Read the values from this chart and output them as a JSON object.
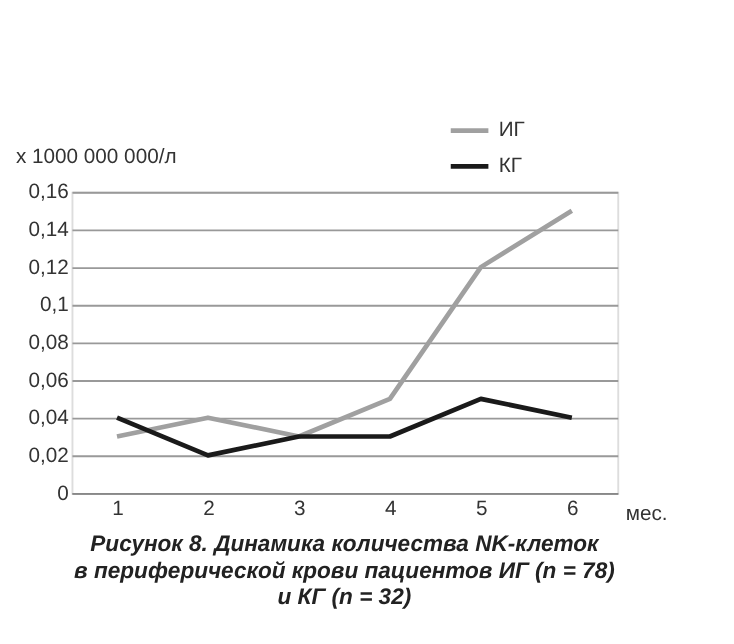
{
  "chart_data": {
    "type": "line",
    "title": "Рисунок 8. Динамика количества NK-клеток\nв периферической крови пациентов ИГ (n = 78)\nи КГ (n = 32)",
    "xlabel": "мес.",
    "ylabel": "x 1000 000 000/л",
    "categories": [
      "1",
      "2",
      "3",
      "4",
      "5",
      "6"
    ],
    "series": [
      {
        "name": "ИГ",
        "color": "#a0a0a0",
        "values": [
          0.03,
          0.04,
          0.03,
          0.05,
          0.12,
          0.15
        ]
      },
      {
        "name": "КГ",
        "color": "#1a1a1a",
        "values": [
          0.04,
          0.02,
          0.03,
          0.03,
          0.05,
          0.04
        ]
      }
    ],
    "ylim": [
      0,
      0.16
    ],
    "yticks": [
      0,
      {
        "value": 0.02,
        "label": "0,02"
      },
      {
        "value": 0.04,
        "label": "0,04"
      },
      {
        "value": 0.06,
        "label": "0,06"
      },
      {
        "value": 0.08,
        "label": "0,08"
      },
      {
        "value": 0.1,
        "label": "0,1"
      },
      {
        "value": 0.12,
        "label": "0,12"
      },
      {
        "value": 0.14,
        "label": "0,14"
      },
      {
        "value": 0.16,
        "label": "0,16"
      }
    ],
    "grid": "y",
    "legend": "top right",
    "marker": "none",
    "line_style": "solid"
  }
}
